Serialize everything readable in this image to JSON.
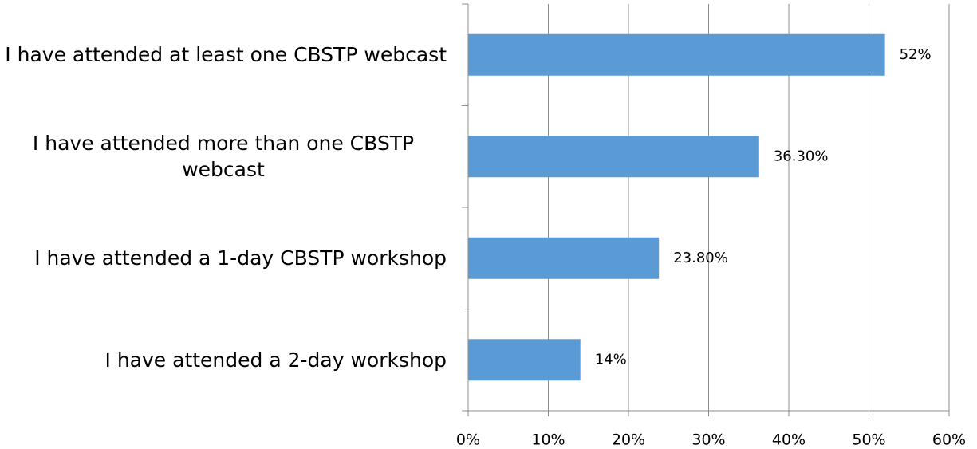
{
  "chart_data": {
    "type": "bar",
    "orientation": "horizontal",
    "categories": [
      "I have attended at least one CBSTP webcast",
      "I have attended more than one CBSTP webcast",
      "I have attended a 1-day CBSTP workshop",
      "I have attended a 2-day workshop"
    ],
    "values": [
      52,
      36.3,
      23.8,
      14
    ],
    "value_labels": [
      "52%",
      "36.30%",
      "23.80%",
      "14%"
    ],
    "color": "#5b9bd5",
    "xlim": [
      0,
      60
    ],
    "xticks": [
      {
        "value": 0,
        "label": "0%"
      },
      {
        "value": 10,
        "label": "10%"
      },
      {
        "value": 20,
        "label": "20%"
      },
      {
        "value": 30,
        "label": "30%"
      },
      {
        "value": 40,
        "label": "40%"
      },
      {
        "value": 50,
        "label": "50%"
      },
      {
        "value": 60,
        "label": "60%"
      }
    ],
    "grid": true
  }
}
